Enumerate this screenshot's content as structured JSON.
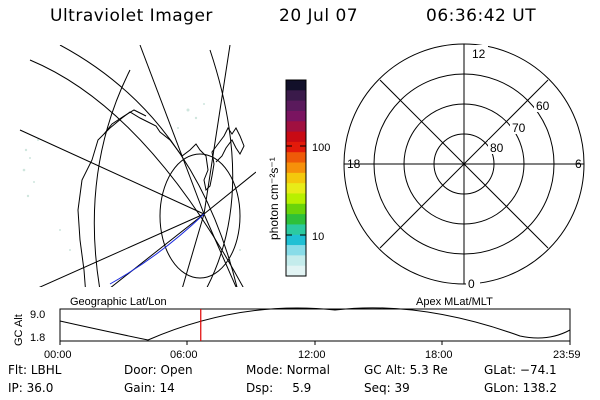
{
  "header": {
    "title": "Ultraviolet Imager",
    "date": "20 Jul 07",
    "time": "06:36:42 UT"
  },
  "colorbar": {
    "label": "photon cm⁻²s⁻¹",
    "ticks": [
      "100",
      "10"
    ],
    "colors": [
      "#12102a",
      "#3a1a4a",
      "#5a1a5c",
      "#7a1460",
      "#a01040",
      "#c80a14",
      "#e21a0a",
      "#ee5a08",
      "#f6900a",
      "#f4c80c",
      "#e8ec18",
      "#b8f000",
      "#6ad40a",
      "#2ec03a",
      "#2ccaa0",
      "#20c0d4",
      "#88dce8",
      "#c4ecec",
      "#e2f4f4"
    ]
  },
  "left_map": {
    "caption": "Geographic Lat/Lon"
  },
  "right_map": {
    "caption": "Apex MLat/MLT",
    "mlt_labels": {
      "top": "12",
      "bottom": "0",
      "left": "18",
      "right": "6"
    },
    "lat_labels": [
      "60",
      "70",
      "80"
    ]
  },
  "timeline": {
    "ylabel": "GC Alt",
    "yticks": [
      "9.0",
      "1.8"
    ],
    "xticks": [
      "00:00",
      "06:00",
      "12:00",
      "18:00",
      "23:59"
    ],
    "current_time_fraction": 0.276,
    "marker_color": "#e00000"
  },
  "info": {
    "flt_label": "Flt:",
    "flt": "LBHL",
    "ip_label": "IP:",
    "ip": "36.0",
    "door_label": "Door:",
    "door": "Open",
    "gain_label": "Gain:",
    "gain": "14",
    "mode_label": "Mode:",
    "mode": "Normal",
    "dsp_label": "Dsp:",
    "dsp": "5.9",
    "gcalt_label": "GC Alt:",
    "gcalt": "5.3 Re",
    "seq_label": "Seq:",
    "seq": "39",
    "glat_label": "GLat:",
    "glat": "−74.1",
    "glon_label": "GLon:",
    "glon": "138.2"
  }
}
